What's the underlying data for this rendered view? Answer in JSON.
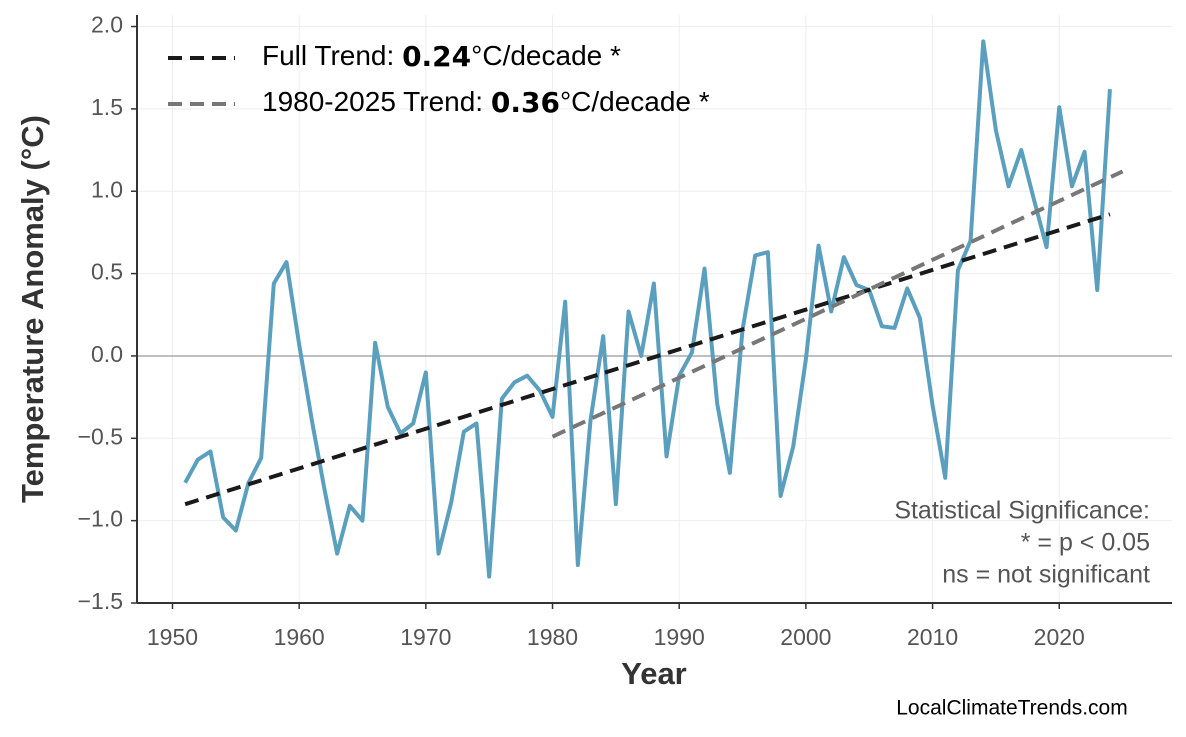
{
  "chart_data": {
    "type": "line",
    "y_label": "Temperature Anomaly (°C)",
    "x_label": "Year",
    "xlim": [
      1947.2,
      2028.9
    ],
    "ylim": [
      -1.5,
      2.07
    ],
    "xticks": [
      1950,
      1960,
      1970,
      1980,
      1990,
      2000,
      2010,
      2020
    ],
    "yticks": [
      {
        "value": -1.5,
        "label": "−1.5"
      },
      {
        "value": -1,
        "label": "−1.0"
      },
      {
        "value": -0.5,
        "label": "−0.5"
      },
      {
        "value": 0,
        "label": "0.0"
      },
      {
        "value": 0.5,
        "label": "0.5"
      },
      {
        "value": 1,
        "label": "1.0"
      },
      {
        "value": 1.5,
        "label": "1.5"
      },
      {
        "value": 2,
        "label": "2.0"
      }
    ],
    "grid": true,
    "zero_line": true,
    "series": [
      {
        "color": "#5b9fbf",
        "x": [
          1951,
          1952,
          1953,
          1954,
          1955,
          1956,
          1957,
          1958,
          1959,
          1960,
          1961,
          1962,
          1963,
          1964,
          1965,
          1966,
          1967,
          1968,
          1969,
          1970,
          1971,
          1972,
          1973,
          1974,
          1975,
          1976,
          1977,
          1978,
          1979,
          1980,
          1981,
          1982,
          1983,
          1984,
          1985,
          1986,
          1987,
          1988,
          1989,
          1990,
          1991,
          1992,
          1993,
          1994,
          1995,
          1996,
          1997,
          1998,
          1999,
          2000,
          2001,
          2002,
          2003,
          2004,
          2005,
          2006,
          2007,
          2008,
          2009,
          2010,
          2011,
          2012,
          2013,
          2014,
          2015,
          2016,
          2017,
          2018,
          2019,
          2020,
          2021,
          2022,
          2023,
          2024
        ],
        "values": [
          -0.77,
          -0.63,
          -0.58,
          -0.98,
          -1.06,
          -0.77,
          -0.62,
          0.44,
          0.57,
          0.07,
          -0.39,
          -0.81,
          -1.2,
          -0.91,
          -1.0,
          0.08,
          -0.31,
          -0.47,
          -0.41,
          -0.1,
          -1.2,
          -0.89,
          -0.46,
          -0.41,
          -1.34,
          -0.26,
          -0.16,
          -0.12,
          -0.21,
          -0.37,
          0.33,
          -1.27,
          -0.39,
          0.12,
          -0.9,
          0.27,
          0.0,
          0.44,
          -0.61,
          -0.12,
          0.02,
          0.53,
          -0.29,
          -0.71,
          0.16,
          0.61,
          0.63,
          -0.85,
          -0.55,
          -0.02,
          0.67,
          0.27,
          0.6,
          0.43,
          0.4,
          0.18,
          0.17,
          0.41,
          0.23,
          -0.3,
          -0.74,
          0.52,
          0.7,
          1.91,
          1.37,
          1.03,
          1.25,
          0.95,
          0.66,
          1.51,
          1.03,
          1.24,
          0.4,
          1.62
        ]
      }
    ],
    "trends": [
      {
        "name": "Full Trend:",
        "slope": 0.24,
        "unit": "°C/decade *",
        "color": "#1a1a1a",
        "x": [
          1951,
          2024
        ],
        "values": [
          -0.9,
          0.86
        ]
      },
      {
        "name": "1980-2025 Trend:",
        "slope": 0.36,
        "unit": "°C/decade *",
        "color": "#777777",
        "x": [
          1980,
          2025
        ],
        "values": [
          -0.49,
          1.12
        ]
      }
    ],
    "annotation": [
      "Statistical Significance:",
      "* = p < 0.05",
      "ns = not significant"
    ],
    "watermark": "LocalClimateTrends.com"
  }
}
